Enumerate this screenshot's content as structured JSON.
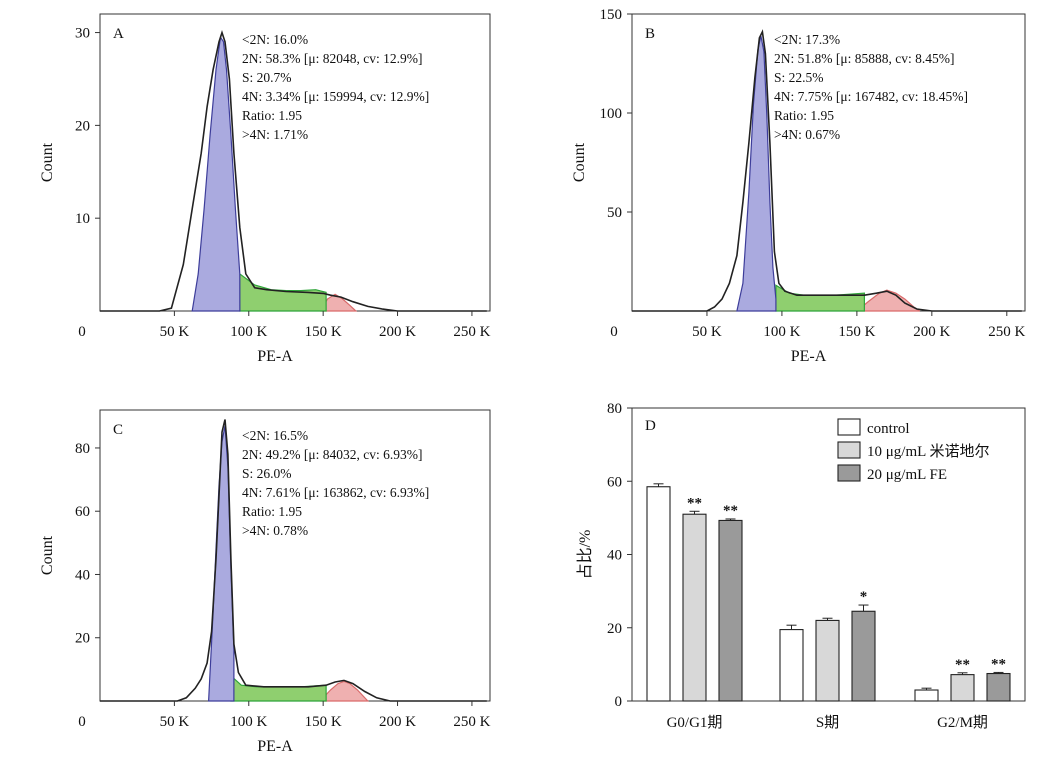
{
  "figure": {
    "flow_x_ticks": [
      "0",
      "50 K",
      "100 K",
      "150 K",
      "200 K",
      "250 K"
    ],
    "flow_xlabel": "PE-A",
    "flow_ylabel": "Count"
  },
  "chart_data": [
    {
      "type": "area",
      "panel": "A",
      "xlabel": "PE-A",
      "ylabel": "Count",
      "xlim": [
        0,
        262144
      ],
      "ylim": [
        0,
        32
      ],
      "y_ticks": [
        10,
        20,
        30
      ],
      "stats": [
        "<2N: 16.0%",
        "2N: 58.3% [μ: 82048, cv: 12.9%]",
        "S: 20.7%",
        "4N: 3.34% [μ: 159994, cv: 12.9%]",
        "Ratio: 1.95",
        ">4N: 1.71%"
      ],
      "histogram": {
        "x": [
          0,
          40000,
          48000,
          56000,
          62000,
          68000,
          72000,
          76000,
          80000,
          82000,
          84000,
          87000,
          90000,
          94000,
          98000,
          104000,
          112000,
          125000,
          140000,
          150000,
          155000,
          162000,
          170000,
          180000,
          190000,
          200000,
          260000
        ],
        "y": [
          0,
          0,
          0.3,
          5,
          11,
          17,
          22,
          26,
          29,
          30,
          29,
          25,
          17,
          9,
          4,
          2.5,
          2.3,
          2.1,
          2.0,
          1.9,
          1.7,
          1.5,
          1.0,
          0.5,
          0.2,
          0,
          0
        ]
      },
      "g1_fit": {
        "x": [
          62000,
          66000,
          70000,
          74000,
          78000,
          81000,
          83000,
          85000,
          88000,
          91000,
          94000
        ],
        "y": [
          0,
          4,
          11,
          19,
          26,
          29.5,
          29,
          26,
          19,
          11,
          4
        ]
      },
      "s_phase": {
        "x": [
          94000,
          104000,
          115000,
          125000,
          135000,
          145000,
          152000
        ],
        "y": [
          4,
          2.8,
          2.3,
          2.2,
          2.2,
          2.3,
          2.0
        ]
      },
      "g2_fit": {
        "x": [
          148000,
          153000,
          158000,
          163000,
          168000,
          172000
        ],
        "y": [
          0,
          1.3,
          1.8,
          1.3,
          0.6,
          0
        ]
      }
    },
    {
      "type": "area",
      "panel": "B",
      "xlabel": "PE-A",
      "ylabel": "Count",
      "xlim": [
        0,
        262144
      ],
      "ylim": [
        0,
        150
      ],
      "y_ticks": [
        50,
        100,
        150
      ],
      "stats": [
        "<2N: 17.3%",
        "2N: 51.8% [μ: 85888, cv: 8.45%]",
        "S: 22.5%",
        "4N: 7.75% [μ: 167482, cv: 18.45%]",
        "Ratio: 1.95",
        ">4N: 0.67%"
      ],
      "histogram": {
        "x": [
          0,
          50000,
          55000,
          60000,
          65000,
          70000,
          74000,
          78000,
          82000,
          85000,
          87000,
          89000,
          92000,
          95000,
          98000,
          102000,
          110000,
          125000,
          140000,
          155000,
          163000,
          170000,
          176000,
          182000,
          190000,
          200000,
          260000
        ],
        "y": [
          0,
          0,
          2,
          6,
          14,
          28,
          55,
          85,
          118,
          138,
          141,
          130,
          85,
          30,
          14,
          10,
          8,
          8,
          8,
          8,
          9,
          10,
          8,
          4,
          1,
          0,
          0
        ]
      },
      "g1_fit": {
        "x": [
          70000,
          74000,
          78000,
          81000,
          84000,
          86000,
          88000,
          90000,
          92000,
          94000,
          96000
        ],
        "y": [
          0,
          14,
          60,
          104,
          132,
          139,
          131,
          98,
          55,
          22,
          6
        ]
      },
      "s_phase": {
        "x": [
          96000,
          105000,
          115000,
          125000,
          135000,
          145000,
          155000
        ],
        "y": [
          13,
          9,
          8,
          8,
          8,
          8.5,
          9
        ]
      },
      "g2_fit": {
        "x": [
          150000,
          158000,
          165000,
          170000,
          176000,
          182000,
          188000,
          192000
        ],
        "y": [
          0,
          5,
          9,
          10.5,
          9,
          6,
          2,
          0
        ]
      }
    },
    {
      "type": "area",
      "panel": "C",
      "xlabel": "PE-A",
      "ylabel": "Count",
      "xlim": [
        0,
        262144
      ],
      "ylim": [
        0,
        92
      ],
      "y_ticks": [
        20,
        40,
        60,
        80
      ],
      "stats": [
        "<2N: 16.5%",
        "2N: 49.2% [μ: 84032, cv: 6.93%]",
        "S: 26.0%",
        "4N: 7.61% [μ: 163862, cv: 6.93%]",
        "Ratio: 1.95",
        ">4N: 0.78%"
      ],
      "histogram": {
        "x": [
          0,
          52000,
          58000,
          64000,
          68000,
          72000,
          75000,
          78000,
          80000,
          82000,
          84000,
          86000,
          88000,
          90000,
          93000,
          98000,
          110000,
          125000,
          140000,
          152000,
          158000,
          164000,
          170000,
          178000,
          186000,
          195000,
          260000
        ],
        "y": [
          0,
          0,
          1,
          4,
          7,
          12,
          22,
          45,
          65,
          85,
          89,
          78,
          45,
          18,
          9,
          5,
          4.5,
          4.5,
          4.5,
          5,
          6,
          6.5,
          5.5,
          3,
          1,
          0,
          0
        ]
      },
      "g1_fit": {
        "x": [
          73000,
          76000,
          78000,
          80000,
          82000,
          84000,
          86000,
          88000,
          90000
        ],
        "y": [
          0,
          28,
          48,
          68,
          82,
          87,
          74,
          42,
          16
        ]
      },
      "s_phase": {
        "x": [
          88000,
          95000,
          105000,
          115000,
          125000,
          135000,
          145000,
          152000
        ],
        "y": [
          8,
          5,
          4.5,
          4.5,
          4.5,
          4.5,
          4.8,
          5
        ]
      },
      "g2_fit": {
        "x": [
          148000,
          155000,
          160000,
          164000,
          168000,
          173000,
          180000
        ],
        "y": [
          0,
          3.5,
          5.5,
          6.2,
          5.5,
          3.5,
          0
        ]
      }
    },
    {
      "type": "bar",
      "panel": "D",
      "ylabel": "占比/%",
      "ylim": [
        0,
        80
      ],
      "y_ticks": [
        0,
        20,
        40,
        60,
        80
      ],
      "legend_position": "top-right",
      "categories": [
        "G0/G1期",
        "S期",
        "G2/M期"
      ],
      "series": [
        {
          "name": "control",
          "values": [
            58.5,
            19.5,
            3.0
          ],
          "errors": [
            0.8,
            1.2,
            0.5
          ],
          "color": "#ffffff",
          "marks": [
            "",
            "",
            ""
          ]
        },
        {
          "name": "10 μg/mL 米诺地尔",
          "values": [
            51.0,
            22.0,
            7.2
          ],
          "errors": [
            0.8,
            0.6,
            0.5
          ],
          "color": "#d8d8d8",
          "marks": [
            "**",
            "",
            "**"
          ]
        },
        {
          "name": "20 μg/mL FE",
          "values": [
            49.3,
            24.5,
            7.5
          ],
          "errors": [
            0.4,
            1.7,
            0.3
          ],
          "color": "#9a9a9a",
          "marks": [
            "**",
            "*",
            "**"
          ]
        }
      ]
    }
  ]
}
